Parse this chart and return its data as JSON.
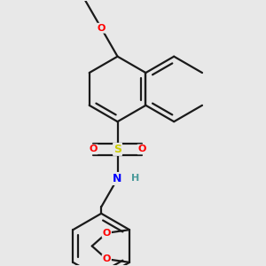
{
  "bg_color": "#e8e8e8",
  "bond_color": "#1a1a1a",
  "atom_colors": {
    "O": "#ff0000",
    "S": "#cccc00",
    "N": "#0000ff",
    "H": "#4a9a9a",
    "C": "#1a1a1a"
  },
  "line_width": 1.6,
  "dbo": 0.018
}
